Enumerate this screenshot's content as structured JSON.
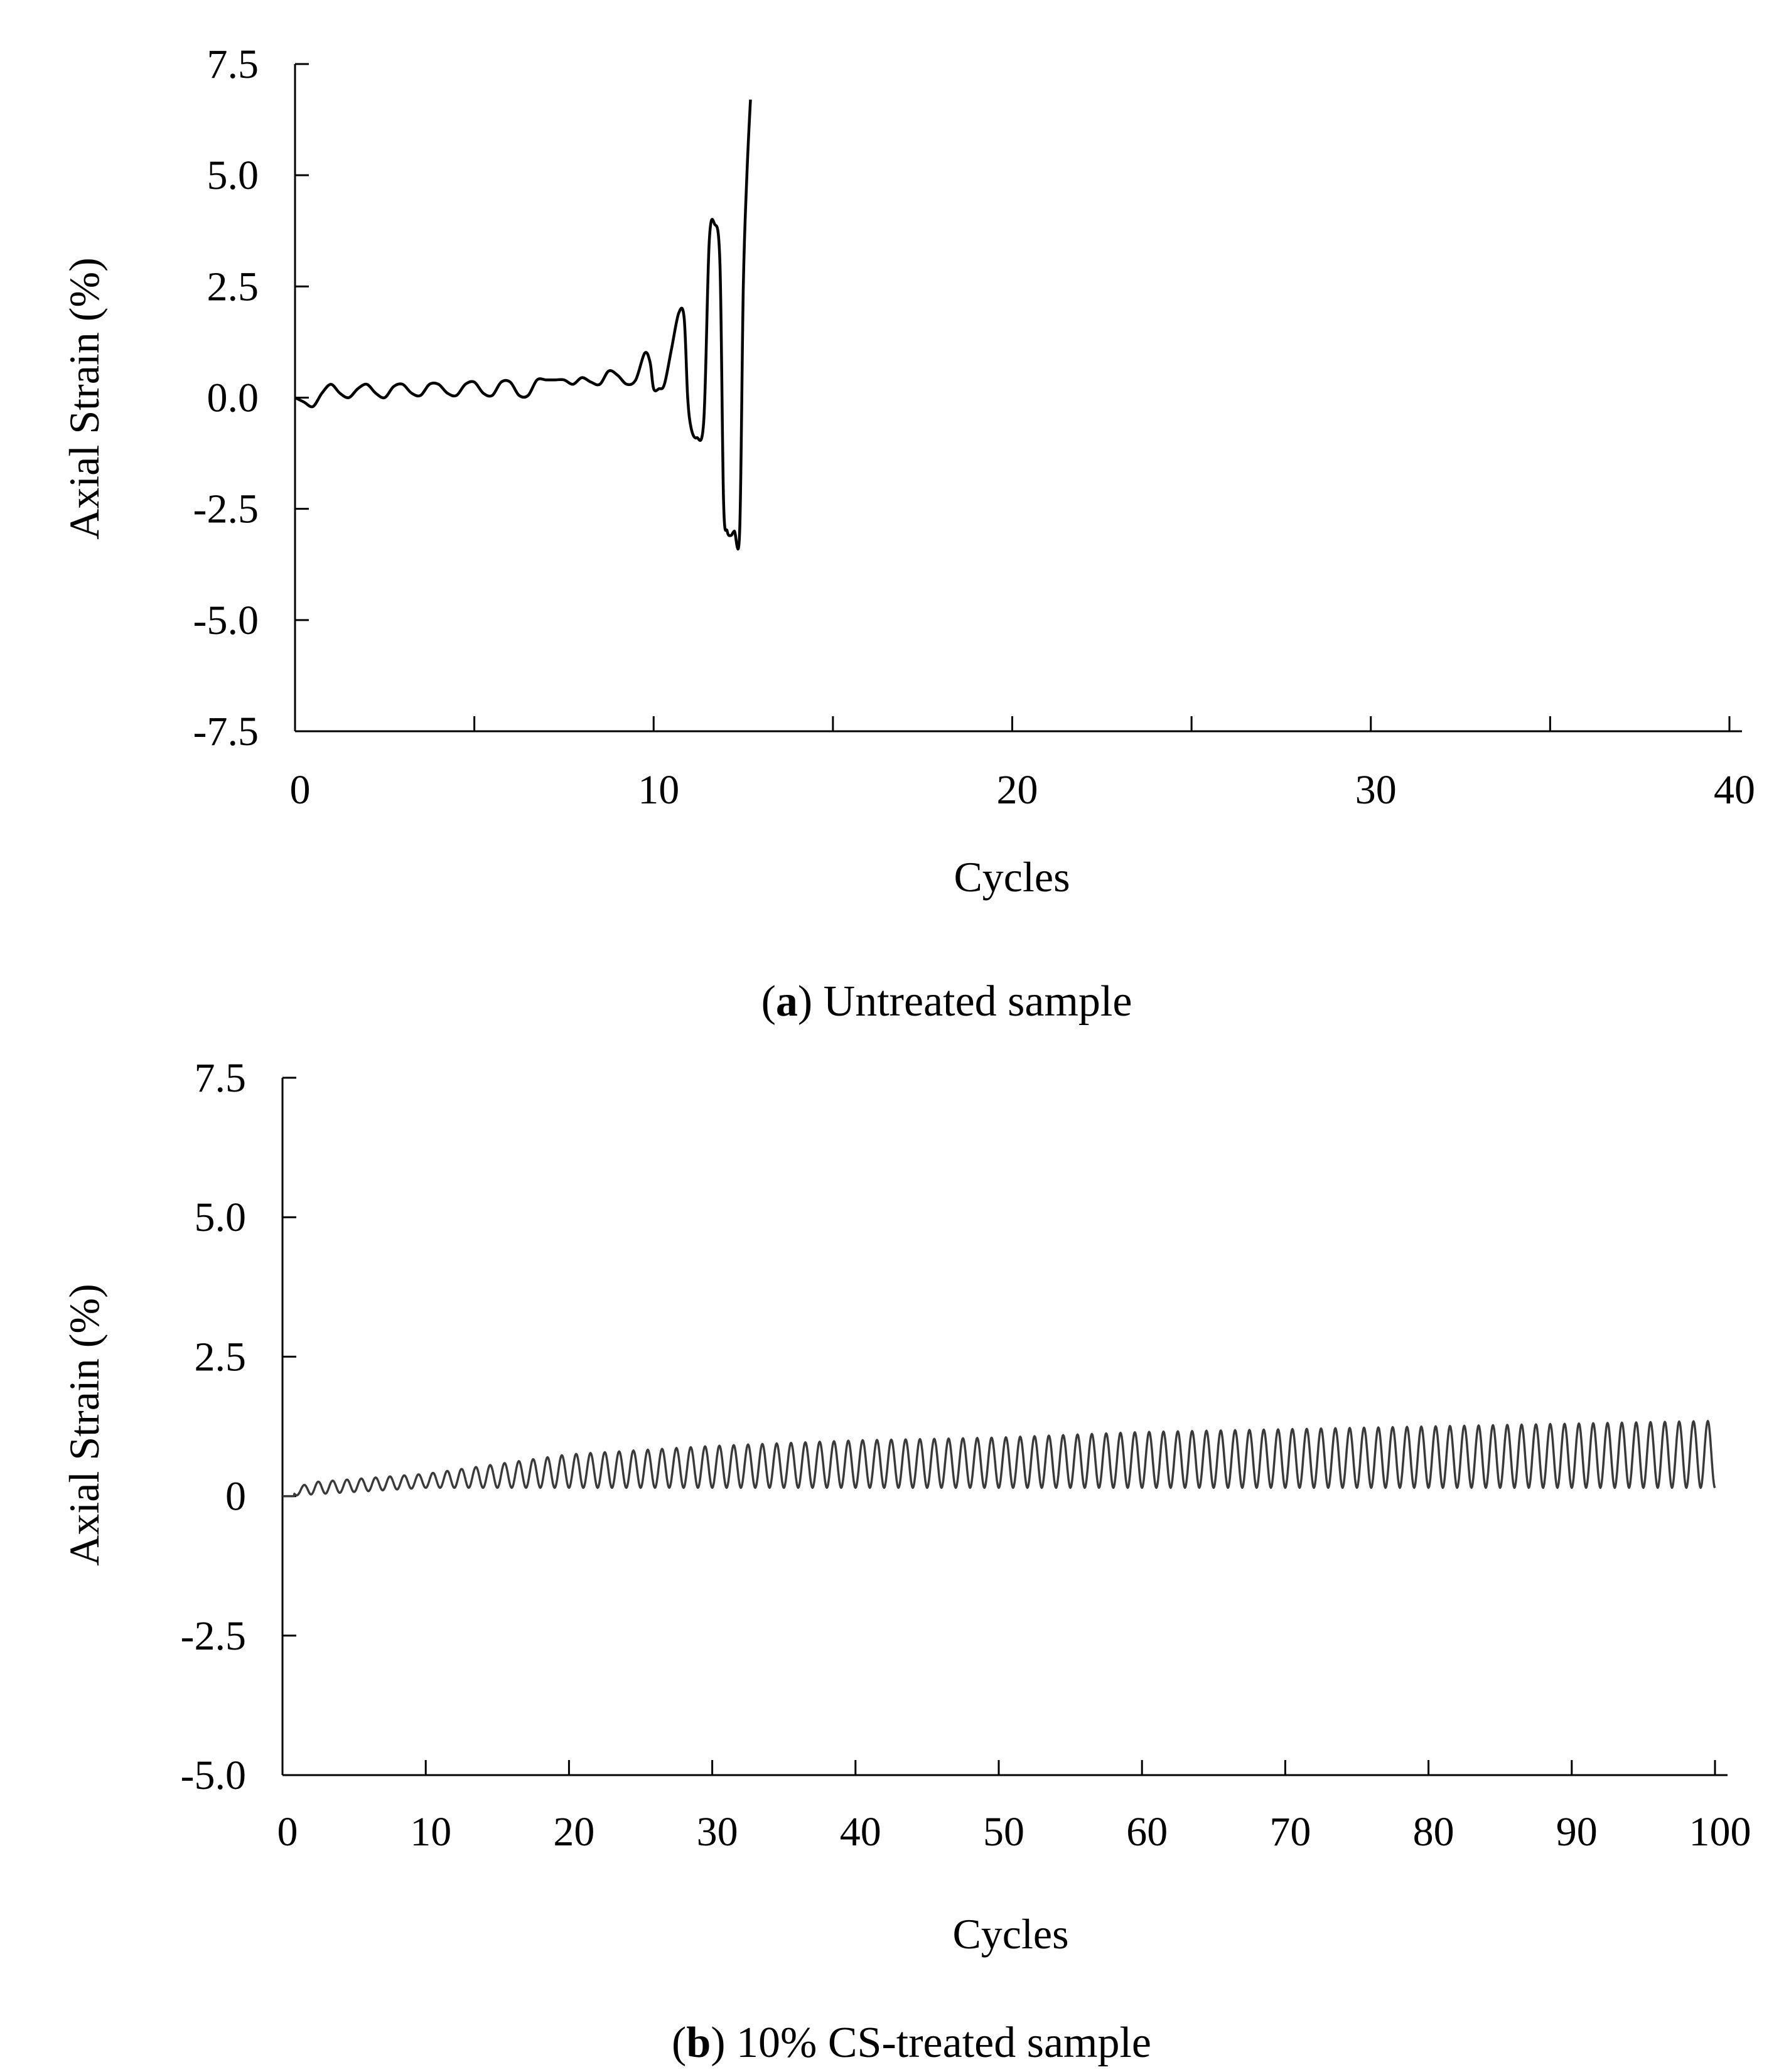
{
  "chart_data": [
    {
      "type": "line",
      "panel": "a",
      "caption_label": "a",
      "caption_text": ") Untreated sample",
      "caption_open": "(",
      "xlabel": "Cycles",
      "ylabel": "Axial Strain (%)",
      "xlim": [
        0,
        40
      ],
      "ylim": [
        -7.5,
        7.5
      ],
      "xticks": [
        0,
        10,
        20,
        30,
        40
      ],
      "xtick_labels": [
        "0",
        "10",
        "20",
        "30",
        "40"
      ],
      "xminor": [
        5,
        15,
        25,
        35
      ],
      "yticks": [
        7.5,
        5.0,
        2.5,
        0.0,
        -2.5,
        -5.0,
        -7.5
      ],
      "ytick_labels": [
        "7.5",
        "5.0",
        "2.5",
        "0.0",
        "-2.5",
        "-5.0",
        "-7.5"
      ],
      "series": [
        {
          "name": "Untreated sample",
          "color": "#000000",
          "x": [
            0,
            0.25,
            0.5,
            0.75,
            1.0,
            1.25,
            1.5,
            1.75,
            2.0,
            2.25,
            2.5,
            2.75,
            3.0,
            3.25,
            3.5,
            3.75,
            4.0,
            4.25,
            4.5,
            4.75,
            5.0,
            5.25,
            5.5,
            5.75,
            6.0,
            6.25,
            6.5,
            6.75,
            7.0,
            7.25,
            7.5,
            7.75,
            8.0,
            8.25,
            8.5,
            8.75,
            9.0,
            9.25,
            9.5,
            9.75,
            9.9,
            10.0,
            10.15,
            10.3,
            10.5,
            10.7,
            10.85,
            10.95,
            11.05,
            11.2,
            11.4,
            11.55,
            11.7,
            11.85,
            11.95,
            12.05,
            12.15,
            12.25,
            12.4,
            12.5,
            12.6,
            12.7
          ],
          "y": [
            0.0,
            -0.1,
            -0.2,
            0.1,
            0.3,
            0.1,
            0.0,
            0.2,
            0.3,
            0.1,
            0.0,
            0.25,
            0.3,
            0.1,
            0.05,
            0.3,
            0.3,
            0.1,
            0.05,
            0.3,
            0.35,
            0.1,
            0.05,
            0.35,
            0.35,
            0.05,
            0.05,
            0.4,
            0.4,
            0.4,
            0.4,
            0.3,
            0.45,
            0.35,
            0.3,
            0.6,
            0.5,
            0.3,
            0.4,
            1.0,
            0.8,
            0.2,
            0.2,
            0.3,
            1.1,
            1.9,
            1.8,
            0.0,
            -0.7,
            -0.9,
            -0.5,
            3.5,
            3.9,
            3.0,
            -2.3,
            -3.0,
            -3.1,
            -3.0,
            -3.0,
            2.5,
            5.0,
            6.7
          ]
        }
      ]
    },
    {
      "type": "line",
      "panel": "b",
      "caption_label": "b",
      "caption_text": ") 10% CS-treated sample",
      "caption_open": "(",
      "xlabel": "Cycles",
      "ylabel": "Axial Strain (%)",
      "xlim": [
        0,
        100
      ],
      "ylim": [
        -5.0,
        7.5
      ],
      "xticks": [
        0,
        10,
        20,
        30,
        40,
        50,
        60,
        70,
        80,
        90,
        100
      ],
      "xtick_labels": [
        "0",
        "10",
        "20",
        "30",
        "40",
        "50",
        "60",
        "70",
        "80",
        "90",
        "100"
      ],
      "yticks": [
        7.5,
        5.0,
        2.5,
        0,
        -2.5,
        -5.0
      ],
      "ytick_labels": [
        "7.5",
        "5.0",
        "2.5",
        "0",
        "-2.5",
        "-5.0"
      ],
      "series": [
        {
          "name": "10% CS-treated sample",
          "color": "#3a3a3a",
          "start_cycle": 0,
          "end_cycle": 100,
          "initial_strain": 0.0,
          "min_strain_envelope": [
            [
              0,
              0.0
            ],
            [
              10,
              0.15
            ],
            [
              20,
              0.15
            ],
            [
              50,
              0.15
            ],
            [
              100,
              0.15
            ]
          ],
          "max_strain_envelope": [
            [
              0,
              0.05
            ],
            [
              2,
              0.25
            ],
            [
              10,
              0.4
            ],
            [
              20,
              0.75
            ],
            [
              30,
              0.9
            ],
            [
              40,
              1.0
            ],
            [
              50,
              1.05
            ],
            [
              60,
              1.15
            ],
            [
              70,
              1.2
            ],
            [
              80,
              1.25
            ],
            [
              90,
              1.3
            ],
            [
              100,
              1.35
            ]
          ],
          "cycles_count": 100
        }
      ]
    }
  ]
}
